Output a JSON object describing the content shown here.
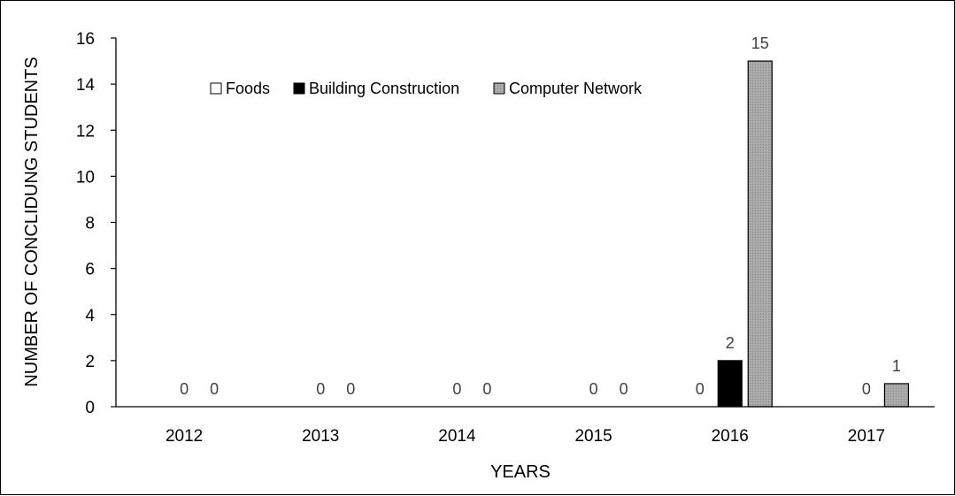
{
  "chart_data": {
    "type": "bar",
    "xlabel": "YEARS",
    "ylabel": "NUMBER OF CONCLIDUNG STUDENTS",
    "categories": [
      "2012",
      "2013",
      "2014",
      "2015",
      "2016",
      "2017"
    ],
    "ylim": [
      0,
      16
    ],
    "yticks": [
      0,
      2,
      4,
      6,
      8,
      10,
      12,
      14,
      16
    ],
    "legend_position": "top-left inside plot",
    "series": [
      {
        "name": "Foods",
        "color": "#ffffff",
        "values": [
          null,
          null,
          null,
          null,
          0,
          null
        ]
      },
      {
        "name": "Building Construction",
        "color": "#000000",
        "values": [
          0,
          0,
          0,
          0,
          2,
          0
        ]
      },
      {
        "name": "Computer Network",
        "color": "#a6a6a6",
        "values": [
          0,
          0,
          0,
          0,
          15,
          1
        ]
      }
    ]
  }
}
